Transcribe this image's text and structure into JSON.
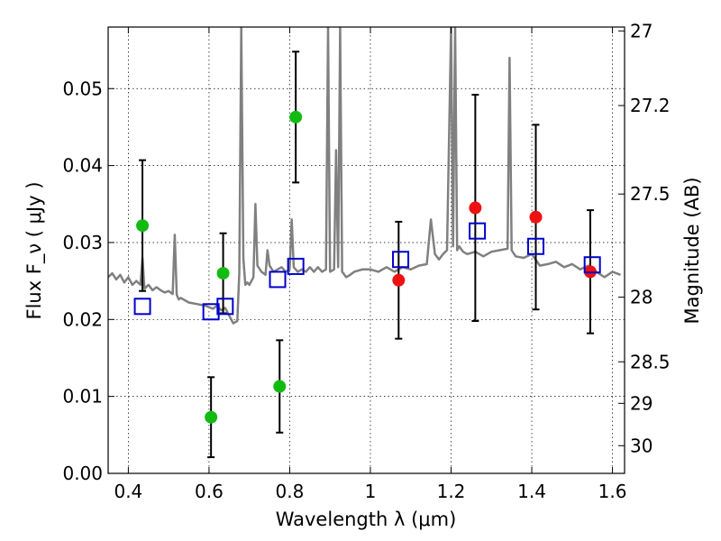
{
  "chart_data": {
    "type": "scatter",
    "xlabel": "Wavelength  λ (μm)",
    "ylabel": "Flux  F_ν  ( μJy )",
    "y2label": "Magnitude (AB)",
    "xlim": [
      0.35,
      1.63
    ],
    "ylim": [
      0.0,
      0.058
    ],
    "grid": true,
    "x_ticks": [
      "0.4",
      "0.6",
      "0.8",
      "1",
      "1.2",
      "1.4",
      "1.6"
    ],
    "y_ticks": [
      "0.00",
      "0.01",
      "0.02",
      "0.03",
      "0.04",
      "0.05"
    ],
    "y2_ticks": [
      {
        "label": "27",
        "flux": 0.0575
      },
      {
        "label": "27.2",
        "flux": 0.0478
      },
      {
        "label": "27.5",
        "flux": 0.0363
      },
      {
        "label": "28",
        "flux": 0.0229
      },
      {
        "label": "28.5",
        "flux": 0.0145
      },
      {
        "label": "29",
        "flux": 0.0091
      },
      {
        "label": "30",
        "flux": 0.0036
      }
    ],
    "colors": {
      "spectrum": "#808080",
      "green": "#11bb11",
      "red": "#ee1111",
      "model": "#0000cc",
      "errorbar": "#000000"
    },
    "series": [
      {
        "kind": "spectrum",
        "x": [
          0.35,
          0.36,
          0.37,
          0.38,
          0.39,
          0.4,
          0.41,
          0.42,
          0.43,
          0.435,
          0.44,
          0.45,
          0.46,
          0.47,
          0.48,
          0.49,
          0.5,
          0.51,
          0.515,
          0.52,
          0.525,
          0.53,
          0.55,
          0.57,
          0.59,
          0.6,
          0.61,
          0.62,
          0.63,
          0.64,
          0.65,
          0.66,
          0.67,
          0.675,
          0.68,
          0.685,
          0.69,
          0.695,
          0.7,
          0.71,
          0.715,
          0.72,
          0.73,
          0.74,
          0.745,
          0.75,
          0.76,
          0.77,
          0.78,
          0.79,
          0.8,
          0.805,
          0.81,
          0.82,
          0.83,
          0.84,
          0.85,
          0.86,
          0.87,
          0.88,
          0.89,
          0.895,
          0.9,
          0.91,
          0.915,
          0.92,
          0.925,
          0.93,
          0.94,
          0.95,
          0.96,
          0.98,
          1.0,
          1.02,
          1.04,
          1.06,
          1.08,
          1.1,
          1.12,
          1.14,
          1.15,
          1.16,
          1.17,
          1.18,
          1.19,
          1.2,
          1.205,
          1.21,
          1.215,
          1.22,
          1.23,
          1.24,
          1.26,
          1.28,
          1.3,
          1.32,
          1.34,
          1.345,
          1.35,
          1.36,
          1.38,
          1.4,
          1.42,
          1.44,
          1.46,
          1.48,
          1.5,
          1.52,
          1.54,
          1.56,
          1.58,
          1.6,
          1.62
        ],
        "y": [
          0.0255,
          0.026,
          0.0252,
          0.0258,
          0.0248,
          0.0255,
          0.0245,
          0.025,
          0.0245,
          0.028,
          0.024,
          0.0245,
          0.0238,
          0.0242,
          0.0238,
          0.0235,
          0.0237,
          0.0233,
          0.031,
          0.0232,
          0.0226,
          0.0228,
          0.0222,
          0.022,
          0.0218,
          0.0216,
          0.0214,
          0.0218,
          0.0212,
          0.0215,
          0.0205,
          0.0195,
          0.0198,
          0.026,
          0.058,
          0.028,
          0.0245,
          0.0248,
          0.0245,
          0.0255,
          0.035,
          0.027,
          0.0262,
          0.0258,
          0.029,
          0.027,
          0.0262,
          0.0265,
          0.0268,
          0.0262,
          0.0265,
          0.033,
          0.0268,
          0.0262,
          0.0265,
          0.0262,
          0.0268,
          0.0262,
          0.0268,
          0.0262,
          0.0265,
          0.058,
          0.0262,
          0.0265,
          0.042,
          0.0268,
          0.058,
          0.0262,
          0.0255,
          0.0258,
          0.0262,
          0.0265,
          0.0265,
          0.0262,
          0.0268,
          0.0262,
          0.0268,
          0.0265,
          0.027,
          0.0272,
          0.033,
          0.0285,
          0.0278,
          0.0285,
          0.029,
          0.058,
          0.0295,
          0.058,
          0.029,
          0.0295,
          0.0288,
          0.0285,
          0.0288,
          0.0282,
          0.0288,
          0.029,
          0.0292,
          0.054,
          0.029,
          0.0282,
          0.028,
          0.0285,
          0.027,
          0.0272,
          0.0275,
          0.0268,
          0.0272,
          0.0265,
          0.027,
          0.0262,
          0.0255,
          0.0262,
          0.0258
        ]
      },
      {
        "kind": "points",
        "marker": "circle",
        "color": "green",
        "x": [
          0.435,
          0.605,
          0.635,
          0.775,
          0.815
        ],
        "y": [
          0.0322,
          0.0073,
          0.026,
          0.0113,
          0.0463
        ],
        "err": [
          0.0085,
          0.0052,
          0.0052,
          0.006,
          0.0085
        ]
      },
      {
        "kind": "points",
        "marker": "circle",
        "color": "red",
        "x": [
          1.07,
          1.26,
          1.41,
          1.545
        ],
        "y": [
          0.0251,
          0.0345,
          0.0333,
          0.0262
        ],
        "err": [
          0.0076,
          0.0147,
          0.012,
          0.008
        ]
      },
      {
        "kind": "points",
        "marker": "square",
        "color": "model",
        "x": [
          0.435,
          0.605,
          0.64,
          0.77,
          0.815,
          1.075,
          1.265,
          1.41,
          1.55
        ],
        "y": [
          0.0217,
          0.021,
          0.0217,
          0.0252,
          0.0269,
          0.0278,
          0.0315,
          0.0295,
          0.0271
        ]
      }
    ]
  }
}
